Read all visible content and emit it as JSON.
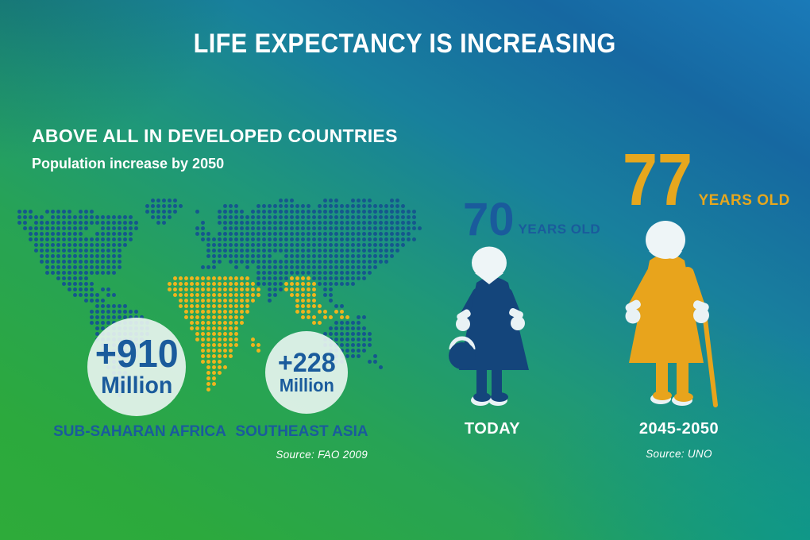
{
  "title": "LIFE EXPECTANCY IS INCREASING",
  "section": {
    "heading": "ABOVE ALL IN DEVELOPED COUNTRIES",
    "subheading": "Population increase by 2050",
    "source": "Source: FAO 2009"
  },
  "stats": [
    {
      "value": "+910",
      "unit": "Million",
      "label": "SUB-SAHARAN AFRICA"
    },
    {
      "value": "+228",
      "unit": "Million",
      "label": "SOUTHEAST ASIA"
    }
  ],
  "ages": [
    {
      "value": "70",
      "suffix": "YEARS OLD",
      "label": "TODAY"
    },
    {
      "value": "77",
      "suffix": "YEARS OLD",
      "label": "2045-2050"
    }
  ],
  "ages_source": "Source: UNO",
  "colors": {
    "text_blue": "#1a5b9c",
    "figure_blue": "#14457b",
    "map_dot_blue": "#15578d",
    "gold": "#e8a41c",
    "map_dot_gold": "#f0b41d",
    "hair_white": "#eef5f7",
    "background_blue": "#1668a1",
    "background_green": "#2eab3a",
    "background_teal": "#009698"
  },
  "map": {
    "pitch": 7,
    "dot_size": 5,
    "grid": [
      "........................bbbbb..................bbb.....bbb..bbbb...bb",
      ".......................bbbbbbb.......bbb...bbbbbbbbbb.bbbbbbbbbbbbbbbb",
      "bbb..bbbbb.bbb.........bbbbbb...b...bbbbb.bbbbbbbbbbbbbbbbbbbbbbbbbbbbbb",
      "bbbbb.bbbbbbbbbbbbbbb...bbbb........bbbbbbbbbbbbbbbbbbbbbbbbbbbbbbbbbbbb",
      "bb.bbbbbbbbbbbbbbbbbbb...bb......b..bbbbbbbbbbbbbbbbbbbbbbbbbbbbbbbbbbbb",
      ".bbbbbbbbbbbb..bbbbbbb..........bb...bbbbbbbbbbbbbbbbbbbbbbbbbbbbbbbbbbbb.",
      "..bbbbbbbbbb..bbbbbbb...........bbb.bbbbbbbbbbbbbbbbbbbbbbbbbbbbbbbbbbb.",
      "..bbbbbbbbbbbbbbbbbbb............bbbbbbbbbbbbbbbbbbbbbbbbbbbbbbbbbbbbbbb.",
      "...bbbbbbbbbbbbbbbbb..............bbbbbbbbbbbbbbbbbbbbbbbbbbbbbbbbbbbb..",
      "...bbbbbbbbbbbbbbbb...............bbbbbbbbbbbbbbbbbbbbbbbbbbbbbbbbbbb...",
      "....bbbbbbbbbbbbbbb...............bbbbbbbbbbbb..bbbbbbbbbbbbbbbbbbbb....",
      "....bbbbbbbbbbbbbbb................bb.bbbbbbbbbbbbbbbbbbbbbbbbbbbbb.....",
      ".....bbbbbbbbbbbbbb..............bbb...b.b.bbbbbbbbbbbbbbbbbbbbbb.......",
      ".....bbbbbbbbbbbbb.........................bbbbbbbbbbbbbbbbbbbbb........",
      ".......bbbbbb...............yyyyyyyyyyyyyy.bbbbbbyyyybbbbbbbbbb.........",
      "........bbbbbb.............yyyyyyyyyyyyyyyybbbbbyyyyyybbbbbbb...........",
      ".........bbbbb.bb..........yyyyyyyyyyyyyyyyy.bbbyyyyyy.bb...............",
      "..........bbbbb.bb..........yyyyyyyyyyyyyyyy.bb..yyyyy.bb...............",
      "............bbbb.............yyyyyyyyyyyyyy..b....yyyy..b...............",
      "..............bbbbbb.........yyyyyyyyyyyyy........yyyyy..bb.............",
      ".............bbbbbbbbb........yyyyyyyyyyyy........yyy.yy.yy.............",
      ".............bbbbbbbbbb.......yyyyyyyyyyy..........yyy.yy.yy.bb.........",
      ".............bbbbbbbbbbb.......yyyyyyyyyy............yy..bbbbb..........",
      "..............bbbbbbbbbb.......yyyyyyyyy................bbbbbbb.........",
      "..............bbbbbbbbbb........yyyyyyyy...............bbbbbbbbb........",
      "..............bbbbbbbbb.........yyyyyyyy..y............bbbbbbbbb........",
      "...............bbbbbbbb..........yyyyyyy..yy...........bbbbbbbbb........",
      "...............bbbbbbb...........yyyyyy....y............bbbbbbb.........",
      "................bbbbbb...........yyyyyy..................bbbbb..b.......",
      "................bbbbb............yyyy....................bb....bb......",
      "................bbbb..............yyyy...........................b......",
      ".................bbb..............yyy",
      ".................bbb..............yy",
      "..................bb..............yy",
      "..................b...............y",
      "..................b"
    ]
  },
  "chart_data": [
    {
      "type": "table",
      "title": "Population increase by 2050",
      "categories": [
        "Sub-Saharan Africa",
        "Southeast Asia"
      ],
      "values": [
        910,
        228
      ],
      "unit": "million people",
      "source": "FAO 2009"
    },
    {
      "type": "table",
      "title": "Life expectancy is increasing",
      "categories": [
        "Today",
        "2045-2050"
      ],
      "values": [
        70,
        77
      ],
      "unit": "years old",
      "source": "UNO"
    }
  ]
}
